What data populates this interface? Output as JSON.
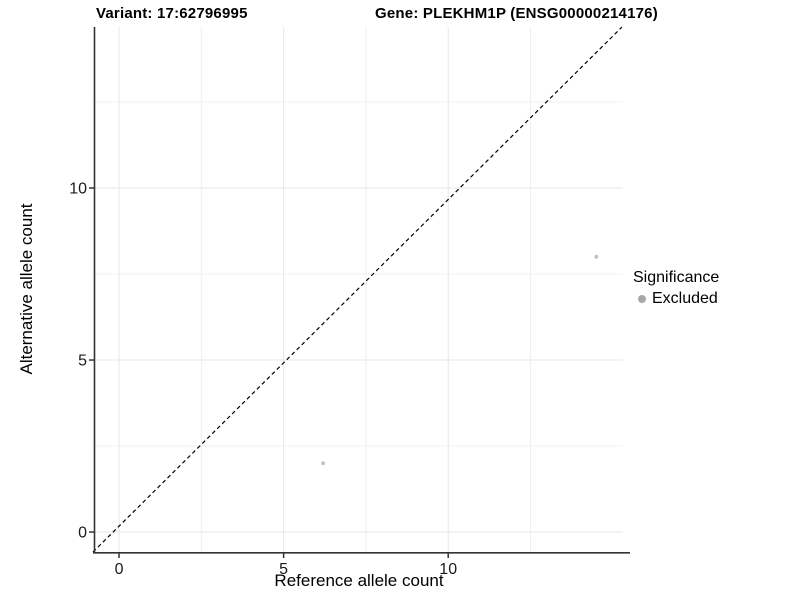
{
  "title": {
    "variant": "Variant: 17:62796995",
    "gene": "Gene: PLEKHM1P (ENSG00000214176)"
  },
  "chart_data": {
    "type": "scatter",
    "title": "Variant: 17:62796995  /  Gene: PLEKHM1P (ENSG00000214176)",
    "xlabel": "Reference allele count",
    "ylabel": "Alternative allele count",
    "xlim": [
      -0.73,
      15.31
    ],
    "ylim": [
      -0.58,
      14.68
    ],
    "x_ticks": [
      0,
      5,
      10
    ],
    "y_ticks": [
      0,
      5,
      10
    ],
    "x_minor": [
      2.5,
      7.5,
      12.5
    ],
    "y_minor": [
      2.5,
      7.5,
      12.5
    ],
    "grid": true,
    "points": [
      {
        "x": 14.5,
        "y": 8,
        "significance": "Excluded"
      },
      {
        "x": 6.2,
        "y": 2,
        "significance": "Excluded"
      }
    ],
    "identity_line": {
      "slope": 1,
      "intercept": 0,
      "style": "dashed",
      "color": "#000000"
    },
    "legend": {
      "title": "Significance",
      "position": "right",
      "items": [
        {
          "label": "Excluded",
          "color": "#a8a8a8"
        }
      ]
    },
    "point_color": "#c0c0c0",
    "grid_major_color": "#e7e7e7",
    "grid_minor_color": "#f0f0f0",
    "axis_color": "#333333"
  }
}
